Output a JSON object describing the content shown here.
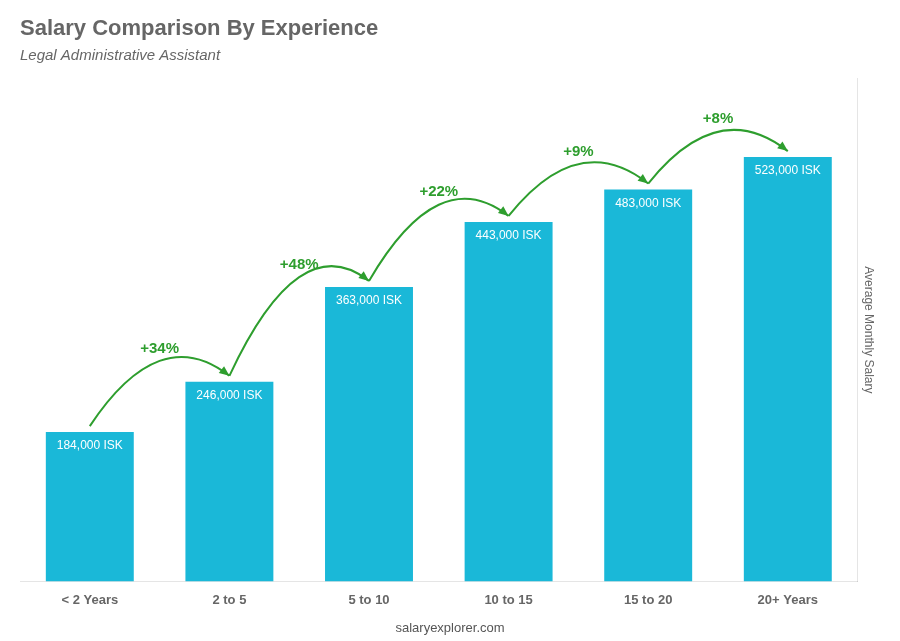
{
  "chart_data": {
    "type": "bar",
    "title": "Salary Comparison By Experience",
    "subtitle": "Legal Administrative Assistant",
    "categories": [
      "< 2 Years",
      "2 to 5",
      "5 to 10",
      "10 to 15",
      "15 to 20",
      "20+ Years"
    ],
    "values": [
      184000,
      246000,
      363000,
      443000,
      483000,
      523000
    ],
    "value_labels": [
      "184,000 ISK",
      "246,000 ISK",
      "363,000 ISK",
      "443,000 ISK",
      "483,000 ISK",
      "523,000 ISK"
    ],
    "data_labels": true,
    "color": "#1ab8d8",
    "ylabel": "Average Monthly Salary",
    "ylim": [
      0,
      620000
    ],
    "tick_labels": "x",
    "grid": false,
    "annotations": [
      "+34%",
      "+48%",
      "+22%",
      "+9%",
      "+8%"
    ],
    "footer": "salaryexplorer.com"
  }
}
